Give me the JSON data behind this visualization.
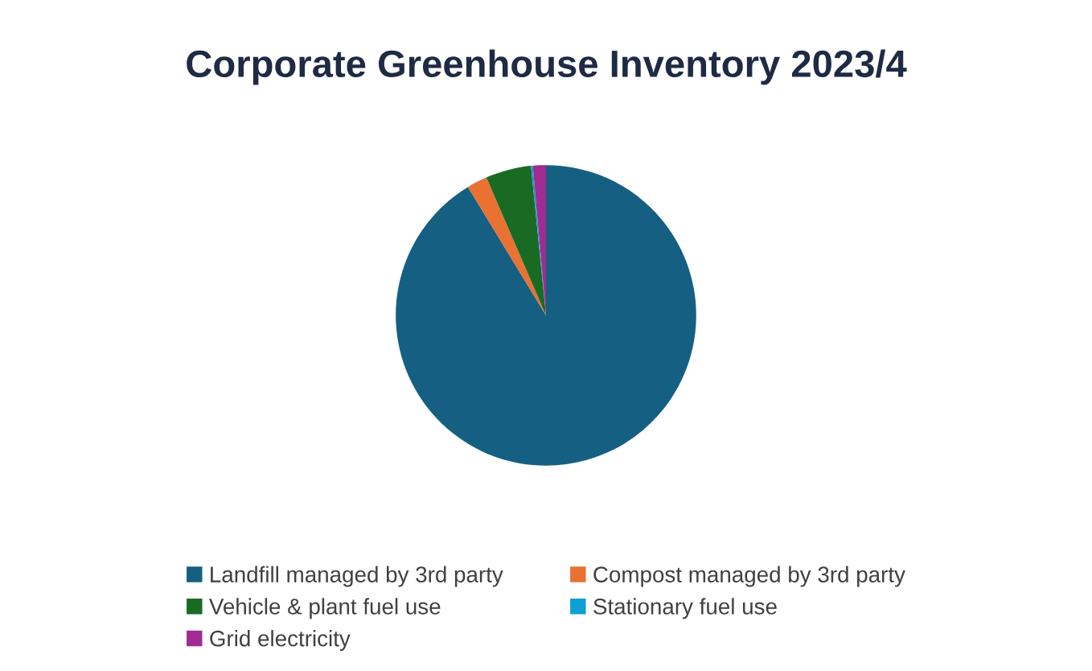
{
  "chart_data": {
    "type": "pie",
    "title": "Corporate Greenhouse Inventory 2023/4",
    "categories": [
      "Landfill managed by 3rd party",
      "Compost managed by 3rd party",
      "Vehicle & plant fuel use",
      "Stationary fuel use",
      "Grid electricity"
    ],
    "values": [
      91.3,
      2.2,
      4.9,
      0.2,
      1.4
    ],
    "colors": [
      "#156082",
      "#e97132",
      "#196b24",
      "#0f9ed5",
      "#a02b93"
    ],
    "legend": "bottom"
  }
}
